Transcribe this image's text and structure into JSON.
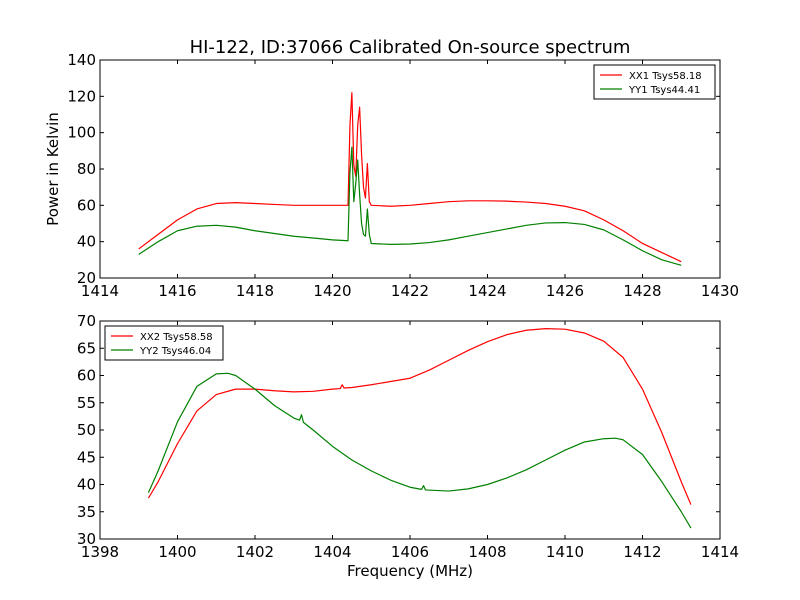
{
  "chart_data": [
    {
      "type": "line",
      "title": "HI-122, ID:37066 Calibrated On-source spectrum",
      "xlabel": "",
      "ylabel": "Power in Kelvin",
      "xlim": [
        1414,
        1430
      ],
      "ylim": [
        20,
        140
      ],
      "xticks": [
        1414,
        1416,
        1418,
        1420,
        1422,
        1424,
        1426,
        1428,
        1430
      ],
      "yticks": [
        20,
        40,
        60,
        80,
        100,
        120,
        140
      ],
      "xtick_labels": [
        "1414",
        "1416",
        "1418",
        "1420",
        "1422",
        "1424",
        "1426",
        "1428",
        "1430"
      ],
      "ytick_labels": [
        "20",
        "40",
        "60",
        "80",
        "100",
        "120",
        "140"
      ],
      "legend_position": "top-right",
      "series": [
        {
          "name": "XX1 Tsys58.18",
          "color": "#ff0000",
          "x": [
            1415.0,
            1415.5,
            1416.0,
            1416.5,
            1417.0,
            1417.5,
            1418.0,
            1418.5,
            1419.0,
            1419.5,
            1420.0,
            1420.4,
            1420.45,
            1420.5,
            1420.55,
            1420.6,
            1420.65,
            1420.7,
            1420.75,
            1420.8,
            1420.85,
            1420.9,
            1420.95,
            1421.0,
            1421.5,
            1422.0,
            1422.5,
            1423.0,
            1423.5,
            1424.0,
            1424.5,
            1425.0,
            1425.5,
            1426.0,
            1426.5,
            1427.0,
            1427.5,
            1428.0,
            1428.5,
            1429.0
          ],
          "values": [
            36,
            44,
            52,
            58,
            61,
            61.5,
            61,
            60.5,
            60,
            60,
            60,
            60,
            104,
            122,
            82,
            76,
            104,
            114,
            88,
            70,
            64,
            83,
            62,
            60,
            59.5,
            60,
            61,
            62,
            62.5,
            62.5,
            62.3,
            61.8,
            61,
            59.5,
            57,
            52,
            46,
            39,
            34,
            29
          ]
        },
        {
          "name": "YY1 Tsys44.41",
          "color": "#008000",
          "x": [
            1415.0,
            1415.5,
            1416.0,
            1416.5,
            1417.0,
            1417.5,
            1418.0,
            1418.5,
            1419.0,
            1419.5,
            1420.0,
            1420.4,
            1420.45,
            1420.5,
            1420.55,
            1420.6,
            1420.65,
            1420.7,
            1420.75,
            1420.8,
            1420.85,
            1420.9,
            1420.95,
            1421.0,
            1421.5,
            1422.0,
            1422.5,
            1423.0,
            1423.5,
            1424.0,
            1424.5,
            1425.0,
            1425.5,
            1426.0,
            1426.5,
            1427.0,
            1427.5,
            1428.0,
            1428.5,
            1429.0
          ],
          "values": [
            33,
            40,
            46,
            48.5,
            49,
            48,
            46,
            44.5,
            43,
            42,
            41,
            40.5,
            78,
            92,
            62,
            72,
            85,
            66,
            50,
            44,
            43,
            58,
            44,
            39,
            38.5,
            38.7,
            39.5,
            41,
            43,
            45,
            47,
            49,
            50.3,
            50.5,
            49.5,
            46.5,
            41,
            35,
            30,
            27
          ]
        }
      ]
    },
    {
      "type": "line",
      "title": "",
      "xlabel": "Frequency (MHz)",
      "ylabel": "",
      "xlim": [
        1398,
        1414
      ],
      "ylim": [
        30,
        70
      ],
      "xticks": [
        1398,
        1400,
        1402,
        1404,
        1406,
        1408,
        1410,
        1412,
        1414
      ],
      "yticks": [
        30,
        35,
        40,
        45,
        50,
        55,
        60,
        65,
        70
      ],
      "xtick_labels": [
        "1398",
        "1400",
        "1402",
        "1404",
        "1406",
        "1408",
        "1410",
        "1412",
        "1414"
      ],
      "ytick_labels": [
        "30",
        "35",
        "40",
        "45",
        "50",
        "55",
        "60",
        "65",
        "70"
      ],
      "legend_position": "top-left",
      "series": [
        {
          "name": "XX2 Tsys58.58",
          "color": "#ff0000",
          "x": [
            1399.25,
            1399.5,
            1400.0,
            1400.5,
            1401.0,
            1401.5,
            1402.0,
            1402.5,
            1403.0,
            1403.5,
            1404.0,
            1404.2,
            1404.25,
            1404.3,
            1404.5,
            1405.0,
            1405.5,
            1406.0,
            1406.5,
            1407.0,
            1407.5,
            1408.0,
            1408.5,
            1409.0,
            1409.5,
            1410.0,
            1410.5,
            1411.0,
            1411.5,
            1412.0,
            1412.5,
            1413.0,
            1413.25
          ],
          "values": [
            37.5,
            40.5,
            47.5,
            53.5,
            56.5,
            57.5,
            57.5,
            57.2,
            57,
            57.1,
            57.5,
            57.6,
            58.3,
            57.7,
            57.8,
            58.3,
            58.9,
            59.5,
            61,
            62.8,
            64.6,
            66.2,
            67.5,
            68.3,
            68.6,
            68.5,
            67.8,
            66.3,
            63.3,
            57.5,
            49.5,
            40.5,
            36.3
          ]
        },
        {
          "name": "YY2 Tsys46.04",
          "color": "#008000",
          "x": [
            1399.25,
            1399.5,
            1400.0,
            1400.5,
            1401.0,
            1401.3,
            1401.5,
            1402.0,
            1402.5,
            1403.0,
            1403.15,
            1403.2,
            1403.25,
            1403.5,
            1404.0,
            1404.5,
            1405.0,
            1405.5,
            1406.0,
            1406.3,
            1406.35,
            1406.4,
            1407.0,
            1407.5,
            1408.0,
            1408.5,
            1409.0,
            1409.5,
            1410.0,
            1410.5,
            1411.0,
            1411.3,
            1411.5,
            1412.0,
            1412.5,
            1413.0,
            1413.25
          ],
          "values": [
            38.5,
            42.5,
            51.5,
            58,
            60.3,
            60.4,
            60,
            57.5,
            54.5,
            52.2,
            51.8,
            52.8,
            51.4,
            50,
            47,
            44.5,
            42.5,
            40.8,
            39.5,
            39.1,
            39.8,
            39,
            38.8,
            39.2,
            40,
            41.2,
            42.7,
            44.5,
            46.3,
            47.8,
            48.4,
            48.5,
            48.2,
            45.5,
            40.5,
            35,
            32
          ]
        }
      ]
    }
  ]
}
